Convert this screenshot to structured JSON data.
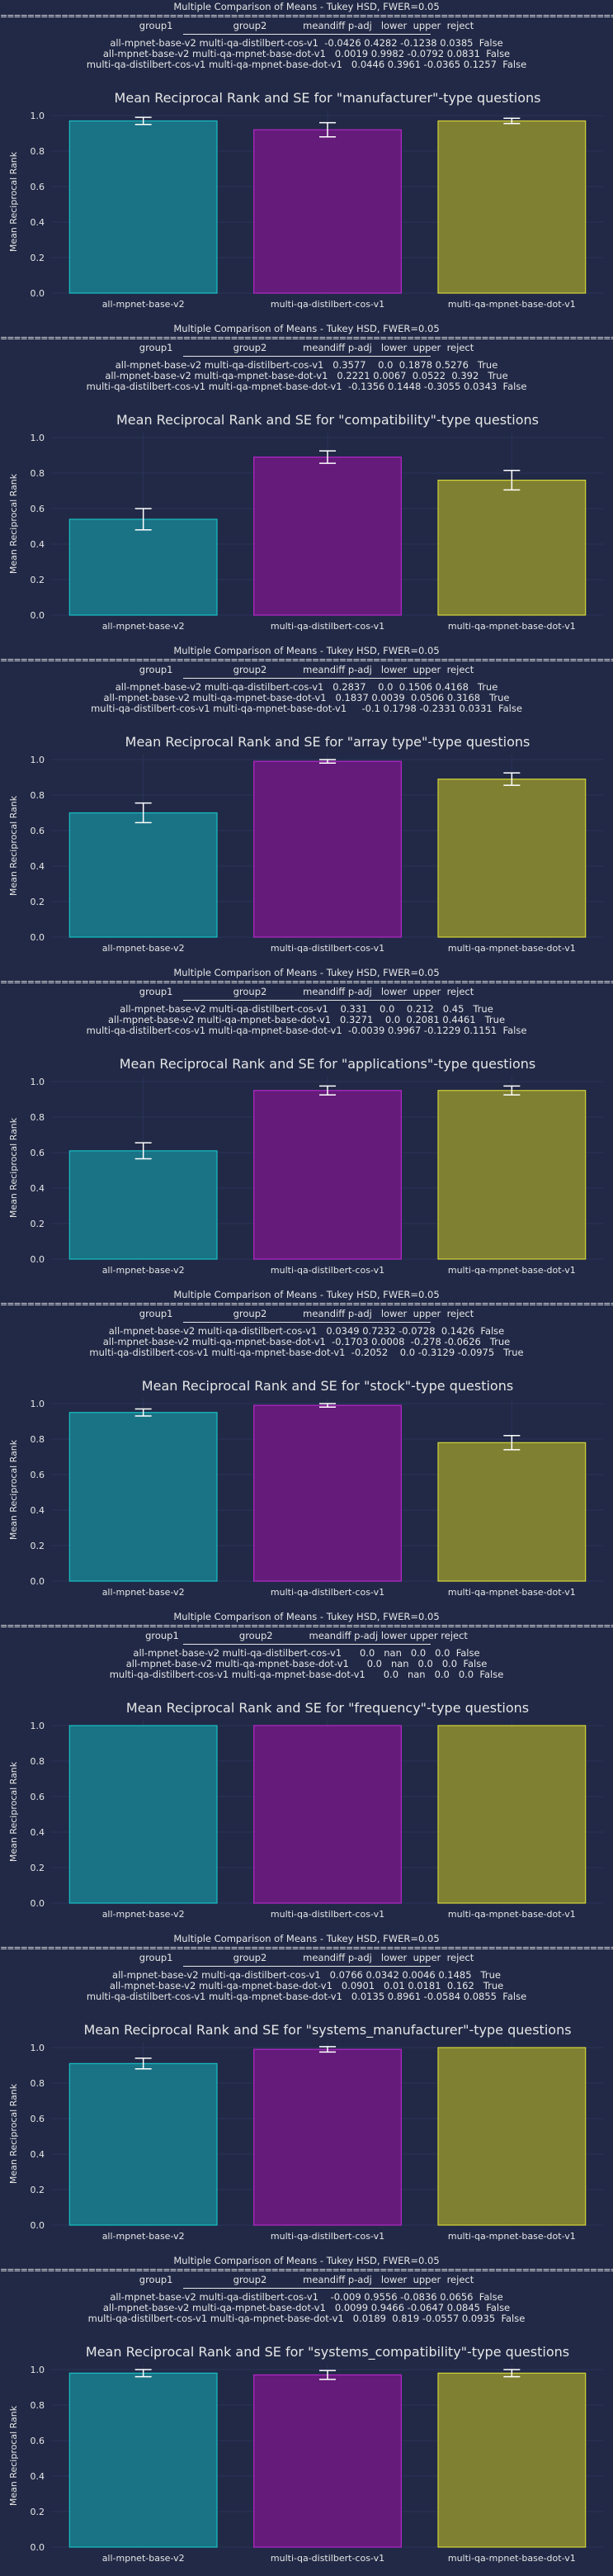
{
  "colors": {
    "background": "#212946",
    "axes_bg": "#212946",
    "grid": "#2A3459",
    "text": "#e6e6e6",
    "bar_colors": [
      "#1a7a8c",
      "#6b1a80",
      "#8a8a30"
    ],
    "bar_edges": [
      "#18c0c4",
      "#b528c8",
      "#d4d43a"
    ]
  },
  "panels": [
    {
      "tukey": {
        "title": "Multiple Comparison of Means - Tukey HSD, FWER=0.05",
        "header": "group1                    group2            meandiff p-adj   lower  upper  reject",
        "rows": [
          "all-mpnet-base-v2 multi-qa-distilbert-cos-v1  -0.0426 0.4282 -0.1238 0.0385  False",
          "all-mpnet-base-v2 multi-qa-mpnet-base-dot-v1   0.0019 0.9982 -0.0792 0.0831  False",
          "multi-qa-distilbert-cos-v1 multi-qa-mpnet-base-dot-v1   0.0446 0.3961 -0.0365 0.1257  False"
        ]
      },
      "chart_data": {
        "type": "bar",
        "title": "Mean Reciprocal Rank and SE for \"manufacturer\"-type questions",
        "xlabel": "",
        "ylabel": "Mean Reciprocal Rank",
        "categories": [
          "all-mpnet-base-v2",
          "multi-qa-distilbert-cos-v1",
          "multi-qa-mpnet-base-dot-v1"
        ],
        "values": [
          0.97,
          0.92,
          0.97
        ],
        "errors": [
          0.02,
          0.04,
          0.015
        ],
        "ylim": [
          0,
          1.0
        ],
        "yticks": [
          "0.0",
          "0.2",
          "0.4",
          "0.6",
          "0.8",
          "1.0"
        ],
        "grid": true
      }
    },
    {
      "tukey": {
        "title": "Multiple Comparison of Means - Tukey HSD, FWER=0.05",
        "header": "group1                    group2            meandiff p-adj   lower  upper  reject",
        "rows": [
          "all-mpnet-base-v2 multi-qa-distilbert-cos-v1   0.3577    0.0  0.1878 0.5276   True",
          "all-mpnet-base-v2 multi-qa-mpnet-base-dot-v1   0.2221 0.0067  0.0522  0.392   True",
          "multi-qa-distilbert-cos-v1 multi-qa-mpnet-base-dot-v1  -0.1356 0.1448 -0.3055 0.0343  False"
        ]
      },
      "chart_data": {
        "type": "bar",
        "title": "Mean Reciprocal Rank and SE for \"compatibility\"-type questions",
        "xlabel": "",
        "ylabel": "Mean Reciprocal Rank",
        "categories": [
          "all-mpnet-base-v2",
          "multi-qa-distilbert-cos-v1",
          "multi-qa-mpnet-base-dot-v1"
        ],
        "values": [
          0.54,
          0.89,
          0.76
        ],
        "errors": [
          0.06,
          0.035,
          0.055
        ],
        "ylim": [
          0,
          1.0
        ],
        "yticks": [
          "0.0",
          "0.2",
          "0.4",
          "0.6",
          "0.8",
          "1.0"
        ],
        "grid": true
      }
    },
    {
      "tukey": {
        "title": "Multiple Comparison of Means - Tukey HSD, FWER=0.05",
        "header": "group1                    group2            meandiff p-adj   lower  upper  reject",
        "rows": [
          "all-mpnet-base-v2 multi-qa-distilbert-cos-v1   0.2837    0.0  0.1506 0.4168   True",
          "all-mpnet-base-v2 multi-qa-mpnet-base-dot-v1   0.1837 0.0039  0.0506 0.3168   True",
          "multi-qa-distilbert-cos-v1 multi-qa-mpnet-base-dot-v1     -0.1 0.1798 -0.2331 0.0331  False"
        ]
      },
      "chart_data": {
        "type": "bar",
        "title": "Mean Reciprocal Rank and SE for \"array type\"-type questions",
        "xlabel": "",
        "ylabel": "Mean Reciprocal Rank",
        "categories": [
          "all-mpnet-base-v2",
          "multi-qa-distilbert-cos-v1",
          "multi-qa-mpnet-base-dot-v1"
        ],
        "values": [
          0.7,
          0.99,
          0.89
        ],
        "errors": [
          0.055,
          0.01,
          0.035
        ],
        "ylim": [
          0,
          1.0
        ],
        "yticks": [
          "0.0",
          "0.2",
          "0.4",
          "0.6",
          "0.8",
          "1.0"
        ],
        "grid": true
      }
    },
    {
      "tukey": {
        "title": "Multiple Comparison of Means - Tukey HSD, FWER=0.05",
        "header": "group1                    group2            meandiff p-adj   lower  upper  reject",
        "rows": [
          "all-mpnet-base-v2 multi-qa-distilbert-cos-v1    0.331    0.0    0.212   0.45   True",
          "all-mpnet-base-v2 multi-qa-mpnet-base-dot-v1   0.3271    0.0  0.2081 0.4461   True",
          "multi-qa-distilbert-cos-v1 multi-qa-mpnet-base-dot-v1  -0.0039 0.9967 -0.1229 0.1151  False"
        ]
      },
      "chart_data": {
        "type": "bar",
        "title": "Mean Reciprocal Rank and SE for \"applications\"-type questions",
        "xlabel": "",
        "ylabel": "Mean Reciprocal Rank",
        "categories": [
          "all-mpnet-base-v2",
          "multi-qa-distilbert-cos-v1",
          "multi-qa-mpnet-base-dot-v1"
        ],
        "values": [
          0.61,
          0.95,
          0.95
        ],
        "errors": [
          0.045,
          0.025,
          0.025
        ],
        "ylim": [
          0,
          1.0
        ],
        "yticks": [
          "0.0",
          "0.2",
          "0.4",
          "0.6",
          "0.8",
          "1.0"
        ],
        "grid": true
      }
    },
    {
      "tukey": {
        "title": "Multiple Comparison of Means - Tukey HSD, FWER=0.05",
        "header": "group1                    group2            meandiff p-adj   lower  upper  reject",
        "rows": [
          "all-mpnet-base-v2 multi-qa-distilbert-cos-v1   0.0349 0.7232 -0.0728  0.1426  False",
          "all-mpnet-base-v2 multi-qa-mpnet-base-dot-v1  -0.1703 0.0008  -0.278 -0.0626   True",
          "multi-qa-distilbert-cos-v1 multi-qa-mpnet-base-dot-v1  -0.2052    0.0 -0.3129 -0.0975   True"
        ]
      },
      "chart_data": {
        "type": "bar",
        "title": "Mean Reciprocal Rank and SE for \"stock\"-type questions",
        "xlabel": "",
        "ylabel": "Mean Reciprocal Rank",
        "categories": [
          "all-mpnet-base-v2",
          "multi-qa-distilbert-cos-v1",
          "multi-qa-mpnet-base-dot-v1"
        ],
        "values": [
          0.95,
          0.99,
          0.78
        ],
        "errors": [
          0.02,
          0.01,
          0.04
        ],
        "ylim": [
          0,
          1.0
        ],
        "yticks": [
          "0.0",
          "0.2",
          "0.4",
          "0.6",
          "0.8",
          "1.0"
        ],
        "grid": true
      }
    },
    {
      "tukey": {
        "title": "Multiple Comparison of Means - Tukey HSD, FWER=0.05",
        "header": "group1                    group2            meandiff p-adj lower upper reject",
        "rows": [
          "all-mpnet-base-v2 multi-qa-distilbert-cos-v1      0.0   nan   0.0   0.0  False",
          "all-mpnet-base-v2 multi-qa-mpnet-base-dot-v1      0.0   nan   0.0   0.0  False",
          "multi-qa-distilbert-cos-v1 multi-qa-mpnet-base-dot-v1      0.0   nan   0.0   0.0  False"
        ]
      },
      "chart_data": {
        "type": "bar",
        "title": "Mean Reciprocal Rank and SE for \"frequency\"-type questions",
        "xlabel": "",
        "ylabel": "Mean Reciprocal Rank",
        "categories": [
          "all-mpnet-base-v2",
          "multi-qa-distilbert-cos-v1",
          "multi-qa-mpnet-base-dot-v1"
        ],
        "values": [
          1.0,
          1.0,
          1.0
        ],
        "errors": [
          0,
          0,
          0
        ],
        "ylim": [
          0,
          1.0
        ],
        "yticks": [
          "0.0",
          "0.2",
          "0.4",
          "0.6",
          "0.8",
          "1.0"
        ],
        "grid": true
      }
    },
    {
      "tukey": {
        "title": "Multiple Comparison of Means - Tukey HSD, FWER=0.05",
        "header": "group1                    group2            meandiff p-adj   lower  upper  reject",
        "rows": [
          "all-mpnet-base-v2 multi-qa-distilbert-cos-v1   0.0766 0.0342 0.0046 0.1485   True",
          "all-mpnet-base-v2 multi-qa-mpnet-base-dot-v1   0.0901   0.01 0.0181  0.162   True",
          "multi-qa-distilbert-cos-v1 multi-qa-mpnet-base-dot-v1   0.0135 0.8961 -0.0584 0.0855  False"
        ]
      },
      "chart_data": {
        "type": "bar",
        "title": "Mean Reciprocal Rank and SE for \"systems_manufacturer\"-type questions",
        "xlabel": "",
        "ylabel": "Mean Reciprocal Rank",
        "categories": [
          "all-mpnet-base-v2",
          "multi-qa-distilbert-cos-v1",
          "multi-qa-mpnet-base-dot-v1"
        ],
        "values": [
          0.91,
          0.99,
          1.0
        ],
        "errors": [
          0.03,
          0.015,
          0
        ],
        "ylim": [
          0,
          1.0
        ],
        "yticks": [
          "0.0",
          "0.2",
          "0.4",
          "0.6",
          "0.8",
          "1.0"
        ],
        "grid": true
      }
    },
    {
      "tukey": {
        "title": "Multiple Comparison of Means - Tukey HSD, FWER=0.05",
        "header": "group1                    group2            meandiff p-adj   lower  upper  reject",
        "rows": [
          "all-mpnet-base-v2 multi-qa-distilbert-cos-v1    -0.009 0.9556 -0.0836 0.0656  False",
          "all-mpnet-base-v2 multi-qa-mpnet-base-dot-v1   0.0099 0.9466 -0.0647 0.0845  False",
          "multi-qa-distilbert-cos-v1 multi-qa-mpnet-base-dot-v1   0.0189  0.819 -0.0557 0.0935  False"
        ]
      },
      "chart_data": {
        "type": "bar",
        "title": "Mean Reciprocal Rank and SE for \"systems_compatibility\"-type questions",
        "xlabel": "",
        "ylabel": "Mean Reciprocal Rank",
        "categories": [
          "all-mpnet-base-v2",
          "multi-qa-distilbert-cos-v1",
          "multi-qa-mpnet-base-dot-v1"
        ],
        "values": [
          0.98,
          0.97,
          0.98
        ],
        "errors": [
          0.02,
          0.025,
          0.02
        ],
        "ylim": [
          0,
          1.0
        ],
        "yticks": [
          "0.0",
          "0.2",
          "0.4",
          "0.6",
          "0.8",
          "1.0"
        ],
        "grid": true
      }
    }
  ]
}
